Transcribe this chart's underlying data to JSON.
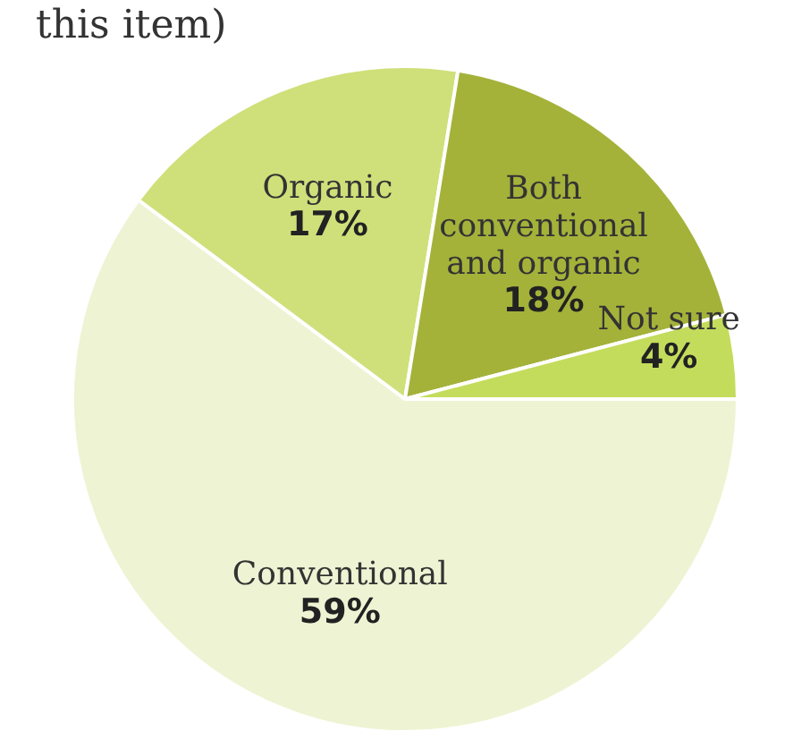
{
  "chart_data": {
    "type": "pie",
    "title": "this item)",
    "categories": [
      "Conventional",
      "Organic",
      "Both conventional and organic",
      "Not sure"
    ],
    "values": [
      59,
      17,
      18,
      4
    ],
    "colors": [
      "#eef4d3",
      "#cfe07a",
      "#a4b23a",
      "#c4dc5c"
    ],
    "value_labels": [
      "59%",
      "17%",
      "18%",
      "4%"
    ],
    "legend": false
  }
}
